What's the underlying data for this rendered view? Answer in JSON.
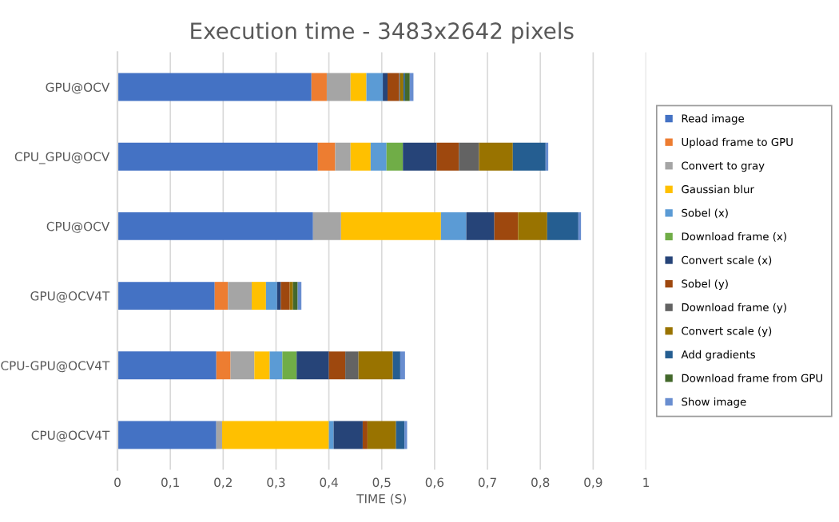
{
  "chart_data": {
    "type": "bar",
    "orientation": "horizontal",
    "stacked": true,
    "title": "Execution time - 3483x2642 pixels",
    "xlabel": "TIME (S)",
    "categories": [
      "GPU@OCV",
      "CPU_GPU@OCV",
      "CPU@OCV",
      "GPU@OCV4T",
      "CPU-GPU@OCV4T",
      "CPU@OCV4T"
    ],
    "xlim": [
      0,
      1
    ],
    "xticks": [
      0,
      {
        "value": 0.1,
        "label": "0,1"
      },
      {
        "value": 0.2,
        "label": "0,2"
      },
      {
        "value": 0.3,
        "label": "0,3"
      },
      {
        "value": 0.4,
        "label": "0,4"
      },
      {
        "value": 0.5,
        "label": "0,5"
      },
      {
        "value": 0.6,
        "label": "0,6"
      },
      {
        "value": 0.7,
        "label": "0,7"
      },
      {
        "value": 0.8,
        "label": "0,8"
      },
      {
        "value": 0.9,
        "label": "0,9"
      },
      1
    ],
    "grid": "x",
    "legend": "right",
    "series": [
      {
        "name": "Read image",
        "color": "#4472c4",
        "values": [
          0.367,
          0.379,
          0.37,
          0.184,
          0.187,
          0.187
        ]
      },
      {
        "name": "Upload frame to GPU",
        "color": "#ed7d31",
        "values": [
          0.029,
          0.033,
          0,
          0.025,
          0.027,
          0
        ]
      },
      {
        "name": "Convert to gray",
        "color": "#a5a5a5",
        "values": [
          0.045,
          0.029,
          0.053,
          0.045,
          0.045,
          0.011
        ]
      },
      {
        "name": "Gaussian blur",
        "color": "#ffc000",
        "values": [
          0.03,
          0.038,
          0.189,
          0.027,
          0.029,
          0.202
        ]
      },
      {
        "name": "Sobel (x)",
        "color": "#5b9bd5",
        "values": [
          0.031,
          0.03,
          0.048,
          0.021,
          0.024,
          0.009
        ]
      },
      {
        "name": "Download frame (x)",
        "color": "#70ad47",
        "values": [
          0,
          0.031,
          0,
          0,
          0.027,
          0
        ]
      },
      {
        "name": "Convert scale (x)",
        "color": "#264478",
        "values": [
          0.009,
          0.064,
          0.053,
          0.007,
          0.061,
          0.055
        ]
      },
      {
        "name": "Sobel (y)",
        "color": "#9e480e",
        "values": [
          0.022,
          0.042,
          0.045,
          0.017,
          0.031,
          0.009
        ]
      },
      {
        "name": "Download frame (y)",
        "color": "#636363",
        "values": [
          0.002,
          0.038,
          0,
          0,
          0.025,
          0
        ]
      },
      {
        "name": "Convert scale (y)",
        "color": "#997300",
        "values": [
          0.006,
          0.064,
          0.055,
          0.006,
          0.065,
          0.054
        ]
      },
      {
        "name": "Add gradients",
        "color": "#255e91",
        "values": [
          0.003,
          0.062,
          0.059,
          null,
          0.014,
          0.016
        ]
      },
      {
        "name": "Download frame from GPU",
        "color": "#43682b",
        "values": [
          0.009,
          0,
          0,
          0.009,
          0,
          0
        ]
      },
      {
        "name": "Show image",
        "color": "#698ed0",
        "values": [
          0.007,
          0.005,
          0.005,
          0.007,
          0.009,
          0.005
        ]
      }
    ]
  }
}
